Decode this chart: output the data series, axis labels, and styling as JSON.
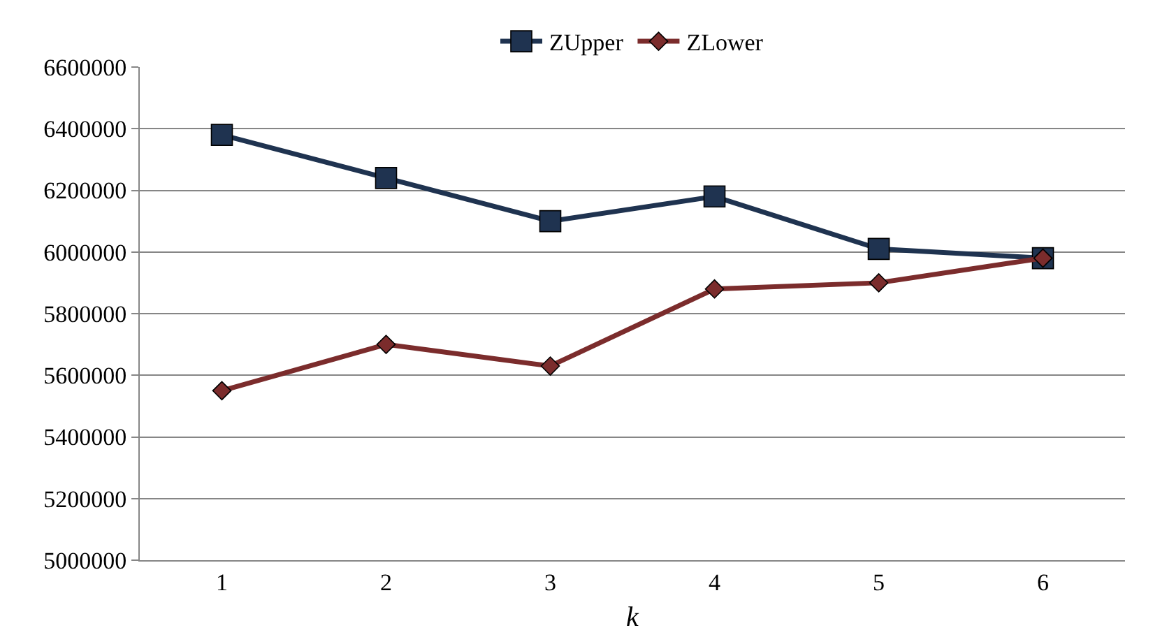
{
  "chart_data": {
    "type": "line",
    "xlabel": "k",
    "categories": [
      "1",
      "2",
      "3",
      "4",
      "5",
      "6"
    ],
    "series": [
      {
        "name": "ZUpper",
        "color": "#1f3350",
        "marker": "square",
        "values": [
          6380000,
          6240000,
          6100000,
          6180000,
          6010000,
          5980000
        ]
      },
      {
        "name": "ZLower",
        "color": "#7b2c2c",
        "marker": "diamond",
        "values": [
          5550000,
          5700000,
          5630000,
          5880000,
          5900000,
          5980000
        ]
      }
    ],
    "ylim": [
      5000000,
      6600000
    ],
    "yticks": [
      5000000,
      5200000,
      5400000,
      5600000,
      5800000,
      6000000,
      6200000,
      6400000,
      6600000
    ],
    "grid": "y",
    "legend": "top"
  }
}
